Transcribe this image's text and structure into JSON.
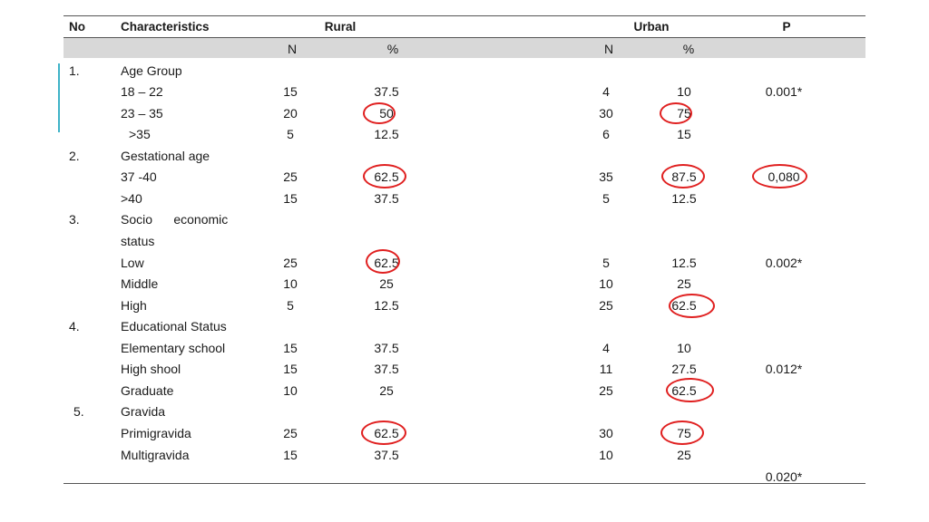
{
  "header": {
    "no": "No",
    "characteristics": "Characteristics",
    "rural": "Rural",
    "urban": "Urban",
    "p": "P"
  },
  "subheader": {
    "rural_n": "N",
    "rural_pct": "%",
    "urban_n": "N",
    "urban_pct": "%"
  },
  "rows": [
    {
      "no": "1.",
      "label": "Age Group",
      "rural_n": "",
      "rural_pct": "",
      "urban_n": "",
      "urban_pct": "",
      "p": ""
    },
    {
      "no": "",
      "label": "18 – 22",
      "rural_n": "15",
      "rural_pct": "37.5",
      "urban_n": "4",
      "urban_pct": "10",
      "p": "0.001*"
    },
    {
      "no": "",
      "label": "23 – 35",
      "rural_n": "20",
      "rural_pct": "50",
      "urban_n": "30",
      "urban_pct": "75",
      "p": ""
    },
    {
      "no": "",
      "label": ">35",
      "rural_n": "5",
      "rural_pct": "12.5",
      "urban_n": "6",
      "urban_pct": "15",
      "p": ""
    },
    {
      "no": "2.",
      "label": "Gestational age",
      "rural_n": "",
      "rural_pct": "",
      "urban_n": "",
      "urban_pct": "",
      "p": ""
    },
    {
      "no": "",
      "label": "37 -40",
      "rural_n": "25",
      "rural_pct": "62.5",
      "urban_n": "35",
      "urban_pct": "87.5",
      "p": "0,080"
    },
    {
      "no": "",
      "label": ">40",
      "rural_n": "15",
      "rural_pct": "37.5",
      "urban_n": "5",
      "urban_pct": "12.5",
      "p": ""
    },
    {
      "no": "3.",
      "label": "Socio      economic",
      "rural_n": "",
      "rural_pct": "",
      "urban_n": "",
      "urban_pct": "",
      "p": ""
    },
    {
      "no": "",
      "label": "status",
      "rural_n": "",
      "rural_pct": "",
      "urban_n": "",
      "urban_pct": "",
      "p": ""
    },
    {
      "no": "",
      "label": "Low",
      "rural_n": "25",
      "rural_pct": "62.5",
      "urban_n": "5",
      "urban_pct": "12.5",
      "p": "0.002*"
    },
    {
      "no": "",
      "label": "Middle",
      "rural_n": "10",
      "rural_pct": "25",
      "urban_n": "10",
      "urban_pct": "25",
      "p": ""
    },
    {
      "no": "",
      "label": "High",
      "rural_n": "5",
      "rural_pct": "12.5",
      "urban_n": "25",
      "urban_pct": "62.5",
      "p": ""
    },
    {
      "no": "4.",
      "label": "Educational Status",
      "rural_n": "",
      "rural_pct": "",
      "urban_n": "",
      "urban_pct": "",
      "p": ""
    },
    {
      "no": "",
      "label": "Elementary school",
      "rural_n": "15",
      "rural_pct": "37.5",
      "urban_n": "4",
      "urban_pct": "10",
      "p": ""
    },
    {
      "no": "",
      "label": "High shool",
      "rural_n": "15",
      "rural_pct": "37.5",
      "urban_n": "11",
      "urban_pct": "27.5",
      "p": "0.012*"
    },
    {
      "no": "",
      "label": "Graduate",
      "rural_n": "10",
      "rural_pct": "25",
      "urban_n": "25",
      "urban_pct": "62.5",
      "p": ""
    },
    {
      "no": "5.",
      "label": "Gravida",
      "rural_n": "",
      "rural_pct": "",
      "urban_n": "",
      "urban_pct": "",
      "p": ""
    },
    {
      "no": "",
      "label": "Primigravida",
      "rural_n": "25",
      "rural_pct": "62.5",
      "urban_n": "30",
      "urban_pct": "75",
      "p": ""
    },
    {
      "no": "",
      "label": "Multigravida",
      "rural_n": "15",
      "rural_pct": "37.5",
      "urban_n": "10",
      "urban_pct": "25",
      "p": ""
    },
    {
      "no": "",
      "label": "",
      "rural_n": "",
      "rural_pct": "",
      "urban_n": "",
      "urban_pct": "",
      "p": "0.020*"
    }
  ],
  "highlight_color": "#e02020",
  "accent_color": "#3fb3c8"
}
